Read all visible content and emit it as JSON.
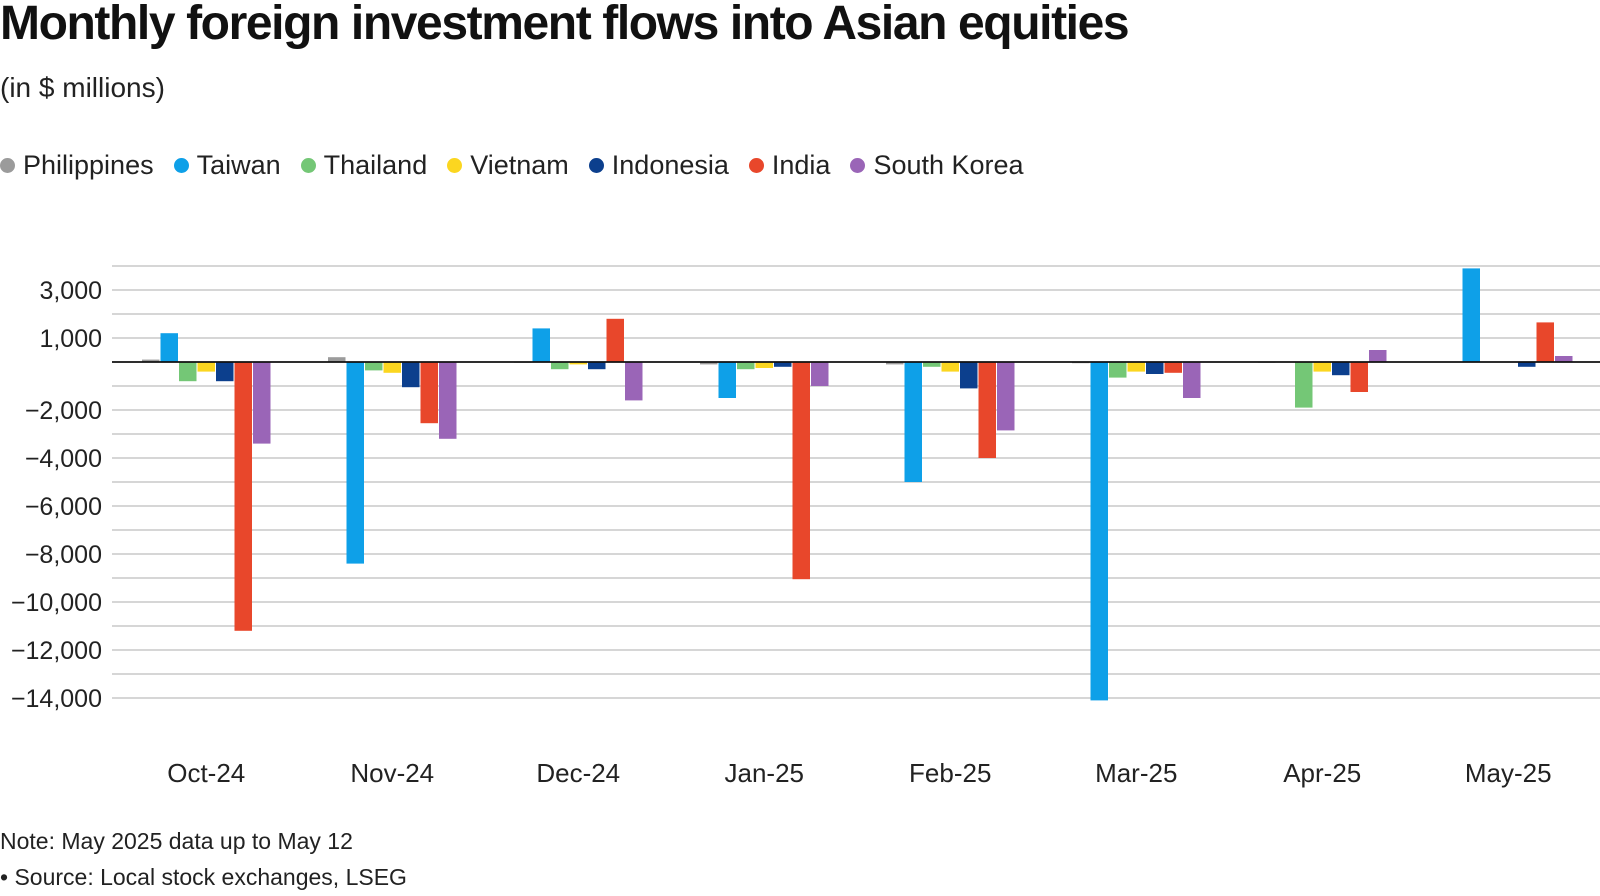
{
  "title": "Monthly foreign investment flows into Asian equities",
  "subtitle": "(in $ millions)",
  "note": "Note: May 2025 data up to May 12",
  "source": "• Source: Local stock exchanges, LSEG",
  "chart_data": {
    "type": "bar",
    "title": "Monthly foreign investment flows into Asian equities",
    "subtitle": "(in $ millions)",
    "xlabel": "",
    "ylabel": "",
    "ylim": [
      -14500,
      4000
    ],
    "legend_position": "top-left",
    "yticks": [
      {
        "value": 3000,
        "label": "3,000"
      },
      {
        "value": 1000,
        "label": "1,000"
      },
      {
        "value": -2000,
        "label": "−2,000"
      },
      {
        "value": -4000,
        "label": "−4,000"
      },
      {
        "value": -6000,
        "label": "−6,000"
      },
      {
        "value": -8000,
        "label": "−8,000"
      },
      {
        "value": -10000,
        "label": "−10,000"
      },
      {
        "value": -12000,
        "label": "−12,000"
      },
      {
        "value": -14000,
        "label": "−14,000"
      }
    ],
    "categories": [
      "Oct-24",
      "Nov-24",
      "Dec-24",
      "Jan-25",
      "Feb-25",
      "Mar-25",
      "Apr-25",
      "May-25"
    ],
    "series": [
      {
        "name": "Philippines",
        "color": "#9b9b9b",
        "values": [
          100,
          200,
          -30,
          -100,
          -100,
          -50,
          -30,
          -20
        ]
      },
      {
        "name": "Taiwan",
        "color": "#0ea0e8",
        "values": [
          1200,
          -8400,
          1400,
          -1500,
          -5000,
          -14100,
          0,
          3900
        ]
      },
      {
        "name": "Thailand",
        "color": "#74c776",
        "values": [
          -800,
          -350,
          -300,
          -300,
          -200,
          -650,
          -1900,
          0
        ]
      },
      {
        "name": "Vietnam",
        "color": "#fbd620",
        "values": [
          -400,
          -450,
          -100,
          -250,
          -400,
          -400,
          -400,
          0
        ]
      },
      {
        "name": "Indonesia",
        "color": "#0c3f8d",
        "values": [
          -800,
          -1050,
          -300,
          -200,
          -1100,
          -500,
          -550,
          -200
        ]
      },
      {
        "name": "India",
        "color": "#e8472b",
        "values": [
          -11200,
          -2550,
          1800,
          -9050,
          -4000,
          -450,
          -1250,
          1650
        ]
      },
      {
        "name": "South Korea",
        "color": "#9a65b7",
        "values": [
          -3400,
          -3200,
          -1600,
          -1000,
          -2850,
          -1500,
          500,
          250
        ]
      }
    ]
  }
}
